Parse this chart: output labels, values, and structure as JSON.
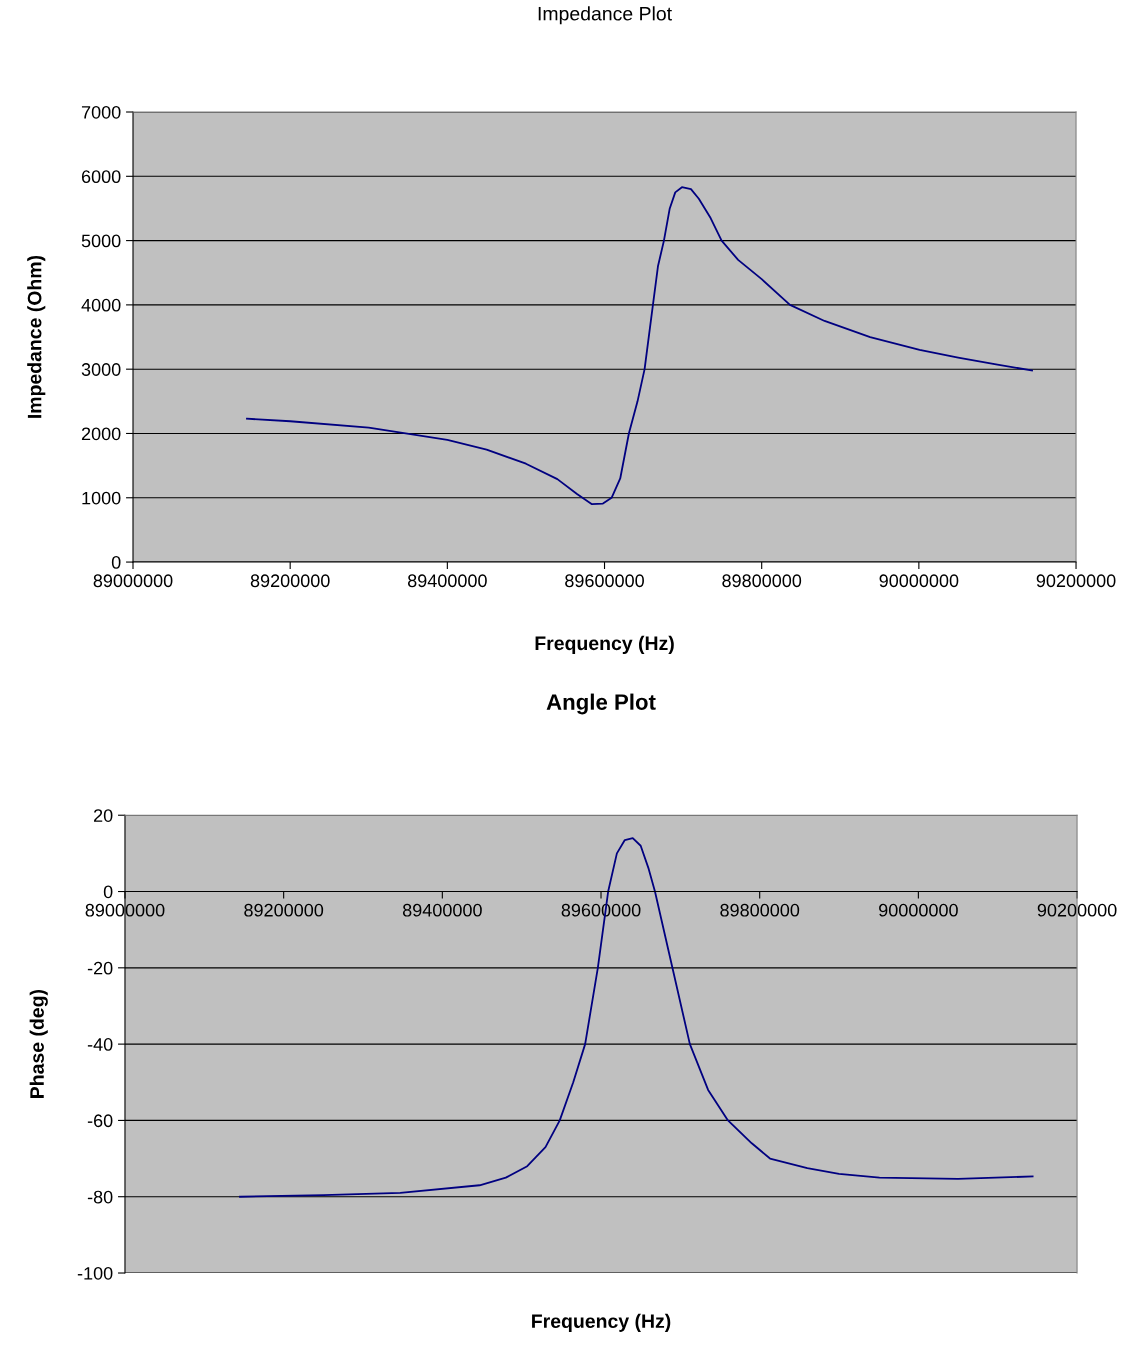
{
  "chart_data": [
    {
      "type": "line",
      "title": "Impedance Plot",
      "xlabel": "Frequency (Hz)",
      "ylabel": "Impedance (Ohm)",
      "color": "#000080",
      "x": [
        89145000,
        89200000,
        89300000,
        89400000,
        89450000,
        89500000,
        89540000,
        89565000,
        89584000,
        89598000,
        89609000,
        89620000,
        89631000,
        89642000,
        89651000,
        89661600,
        89668000,
        89675600,
        89683000,
        89690000,
        89698500,
        89710000,
        89720000,
        89735000,
        89749000,
        89770000,
        89800000,
        89836000,
        89880000,
        89938000,
        90001000,
        90050000,
        90100000,
        90144000
      ],
      "values": [
        2230,
        2190,
        2090,
        1900,
        1750,
        1530,
        1290,
        1060,
        900,
        910,
        1000,
        1300,
        2000,
        2500,
        3000,
        4000,
        4600,
        5000,
        5500,
        5750,
        5830,
        5800,
        5650,
        5350,
        5000,
        4700,
        4400,
        4000,
        3750,
        3500,
        3300,
        3180,
        3070,
        2980
      ],
      "xlim": [
        89000000,
        90200000
      ],
      "xticks": [
        89000000,
        89200000,
        89400000,
        89600000,
        89800000,
        90000000,
        90200000
      ],
      "ylim": [
        0,
        7000
      ],
      "yticks": [
        0,
        1000,
        2000,
        3000,
        4000,
        5000,
        6000,
        7000
      ],
      "grid": "y"
    },
    {
      "type": "line",
      "title": "Angle Plot",
      "xlabel": "Frequency (Hz)",
      "ylabel": "Phase (deg)",
      "color": "#000080",
      "x": [
        89145000,
        89250000,
        89347000,
        89447000,
        89480000,
        89507000,
        89530000,
        89548000,
        89565000,
        89580000,
        89596000,
        89609000,
        89620000,
        89630000,
        89640000,
        89650000,
        89660000,
        89668000,
        89690000,
        89712000,
        89735000,
        89760000,
        89790000,
        89813000,
        89860000,
        89900000,
        89951000,
        90050000,
        90144000
      ],
      "values": [
        -80,
        -79.6,
        -79,
        -77,
        -75,
        -72,
        -67,
        -60,
        -50,
        -40,
        -20,
        0,
        10,
        13.5,
        14,
        12,
        6,
        0,
        -20,
        -40,
        -52,
        -60,
        -66,
        -70,
        -72.5,
        -74,
        -75,
        -75.3,
        -74.7
      ],
      "xlim": [
        89000000,
        90200000
      ],
      "xticks": [
        89000000,
        89200000,
        89400000,
        89600000,
        89800000,
        90000000,
        90200000
      ],
      "ylim": [
        -100,
        20
      ],
      "yticks": [
        -100,
        -80,
        -60,
        -40,
        -20,
        0,
        20
      ],
      "grid": "y"
    }
  ]
}
